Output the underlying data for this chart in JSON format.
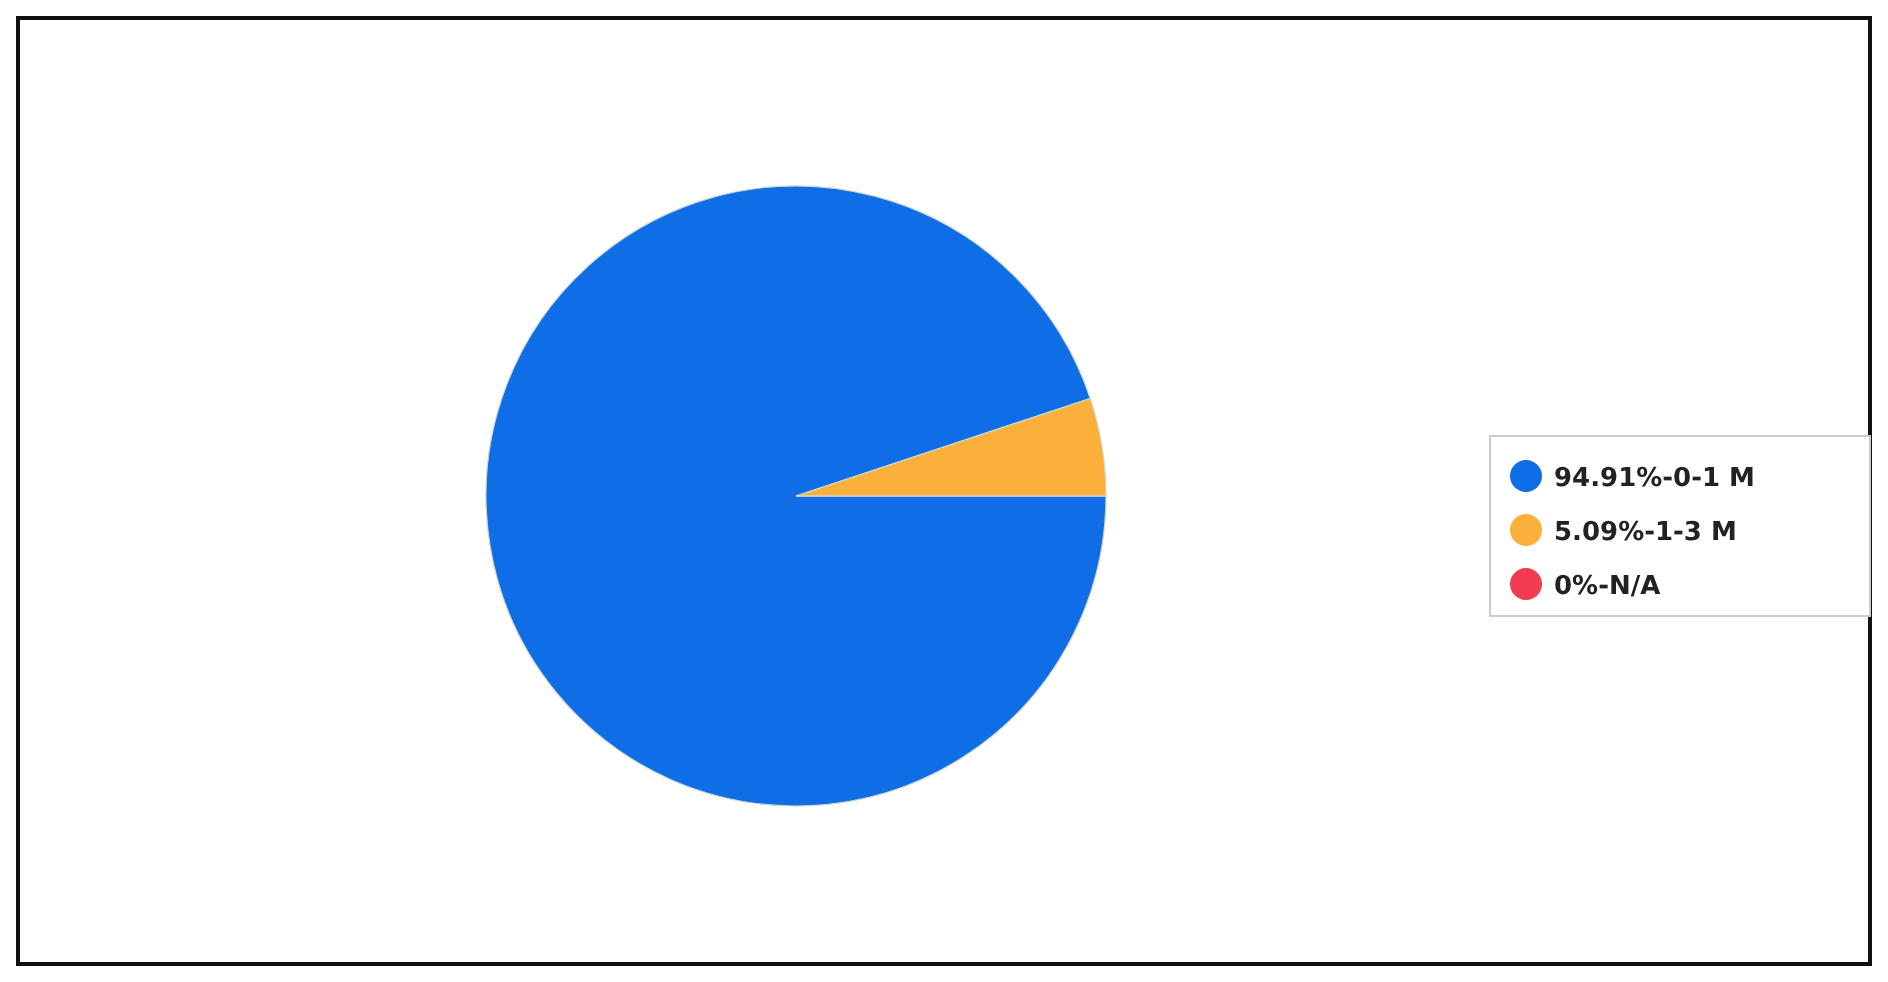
{
  "chart_data": {
    "type": "pie",
    "categories": [
      "94.91%-0-1 M",
      "5.09%-1-3 M",
      "0%-N/A"
    ],
    "values": [
      94.91,
      5.09,
      0
    ],
    "colors": [
      "#0f6ee6",
      "#fbb03b",
      "#f23c4f"
    ],
    "legend": "right"
  }
}
